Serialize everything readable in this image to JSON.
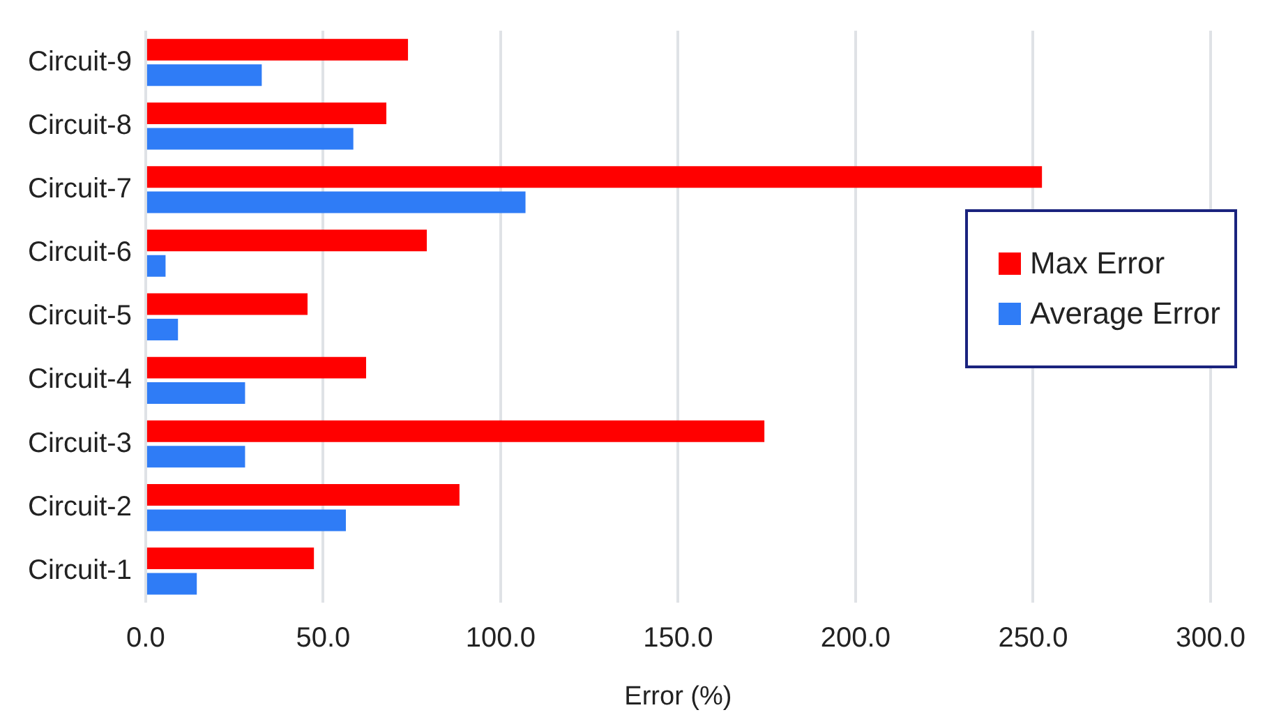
{
  "chart_data": {
    "type": "bar",
    "orientation": "horizontal",
    "xlabel": "Error (%)",
    "categories": [
      "Circuit-9",
      "Circuit-8",
      "Circuit-7",
      "Circuit-6",
      "Circuit-5",
      "Circuit-4",
      "Circuit-3",
      "Circuit-2",
      "Circuit-1"
    ],
    "series": [
      {
        "name": "Max Error",
        "color": "#ff0000",
        "values": [
          73.9,
          67.8,
          252.5,
          79.2,
          45.6,
          62.1,
          174.3,
          88.4,
          47.4
        ]
      },
      {
        "name": "Average Error",
        "color": "#2f7cf6",
        "values": [
          32.7,
          58.5,
          107.0,
          5.6,
          9.1,
          28.0,
          28.0,
          56.4,
          14.4
        ]
      }
    ],
    "xlim": [
      0,
      300
    ],
    "xticks": [
      {
        "value": 0,
        "label": "0.0"
      },
      {
        "value": 50,
        "label": "50.0"
      },
      {
        "value": 100,
        "label": "100.0"
      },
      {
        "value": 150,
        "label": "150.0"
      },
      {
        "value": 200,
        "label": "200.0"
      },
      {
        "value": 250,
        "label": "250.0"
      },
      {
        "value": 300,
        "label": "300.0"
      }
    ],
    "grid": "x",
    "legend": "right"
  }
}
